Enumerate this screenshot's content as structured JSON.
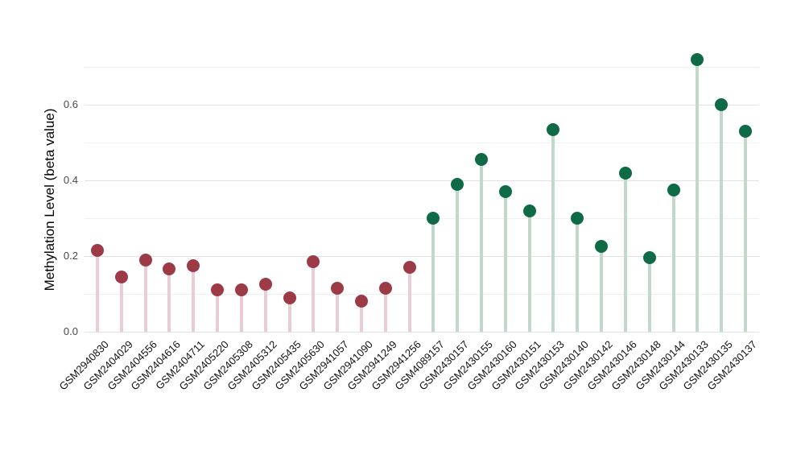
{
  "chart_data": {
    "type": "scatter",
    "variant": "lollipop",
    "title": "",
    "xlabel": "",
    "ylabel": "Methylation Level (beta value)",
    "ylim": [
      0,
      0.745
    ],
    "grid": "on",
    "grid_step": 0.1,
    "grid_max": 0.7,
    "legend": "none",
    "ytick_labels": [
      "0.0",
      "0.2",
      "0.4",
      "0.6"
    ],
    "groups": {
      "maroon": {
        "dot_color": "#9c3a46",
        "stem_color": "#e8ced4"
      },
      "green": {
        "dot_color": "#0e6b46",
        "stem_color": "#c3d8cd"
      }
    },
    "points": [
      {
        "label": "GSM2940830",
        "value": 0.215,
        "group": "maroon"
      },
      {
        "label": "GSM2404029",
        "value": 0.145,
        "group": "maroon"
      },
      {
        "label": "GSM2404556",
        "value": 0.19,
        "group": "maroon"
      },
      {
        "label": "GSM2404616",
        "value": 0.165,
        "group": "maroon"
      },
      {
        "label": "GSM2404711",
        "value": 0.175,
        "group": "maroon"
      },
      {
        "label": "GSM2405220",
        "value": 0.11,
        "group": "maroon"
      },
      {
        "label": "GSM2405308",
        "value": 0.11,
        "group": "maroon"
      },
      {
        "label": "GSM2405312",
        "value": 0.125,
        "group": "maroon"
      },
      {
        "label": "GSM2405435",
        "value": 0.09,
        "group": "maroon"
      },
      {
        "label": "GSM2405630",
        "value": 0.185,
        "group": "maroon"
      },
      {
        "label": "GSM2941057",
        "value": 0.115,
        "group": "maroon"
      },
      {
        "label": "GSM2941090",
        "value": 0.08,
        "group": "maroon"
      },
      {
        "label": "GSM2941249",
        "value": 0.115,
        "group": "maroon"
      },
      {
        "label": "GSM2941256",
        "value": 0.17,
        "group": "maroon"
      },
      {
        "label": "GSM4089157",
        "value": 0.3,
        "group": "green"
      },
      {
        "label": "GSM2430157",
        "value": 0.39,
        "group": "green"
      },
      {
        "label": "GSM2430155",
        "value": 0.455,
        "group": "green"
      },
      {
        "label": "GSM2430160",
        "value": 0.37,
        "group": "green"
      },
      {
        "label": "GSM2430151",
        "value": 0.32,
        "group": "green"
      },
      {
        "label": "GSM2430153",
        "value": 0.535,
        "group": "green"
      },
      {
        "label": "GSM2430140",
        "value": 0.3,
        "group": "green"
      },
      {
        "label": "GSM2430142",
        "value": 0.225,
        "group": "green"
      },
      {
        "label": "GSM2430146",
        "value": 0.42,
        "group": "green"
      },
      {
        "label": "GSM2430148",
        "value": 0.195,
        "group": "green"
      },
      {
        "label": "GSM2430144",
        "value": 0.375,
        "group": "green"
      },
      {
        "label": "GSM2430133",
        "value": 0.72,
        "group": "green"
      },
      {
        "label": "GSM2430135",
        "value": 0.6,
        "group": "green"
      },
      {
        "label": "GSM2430137",
        "value": 0.53,
        "group": "green"
      }
    ]
  }
}
